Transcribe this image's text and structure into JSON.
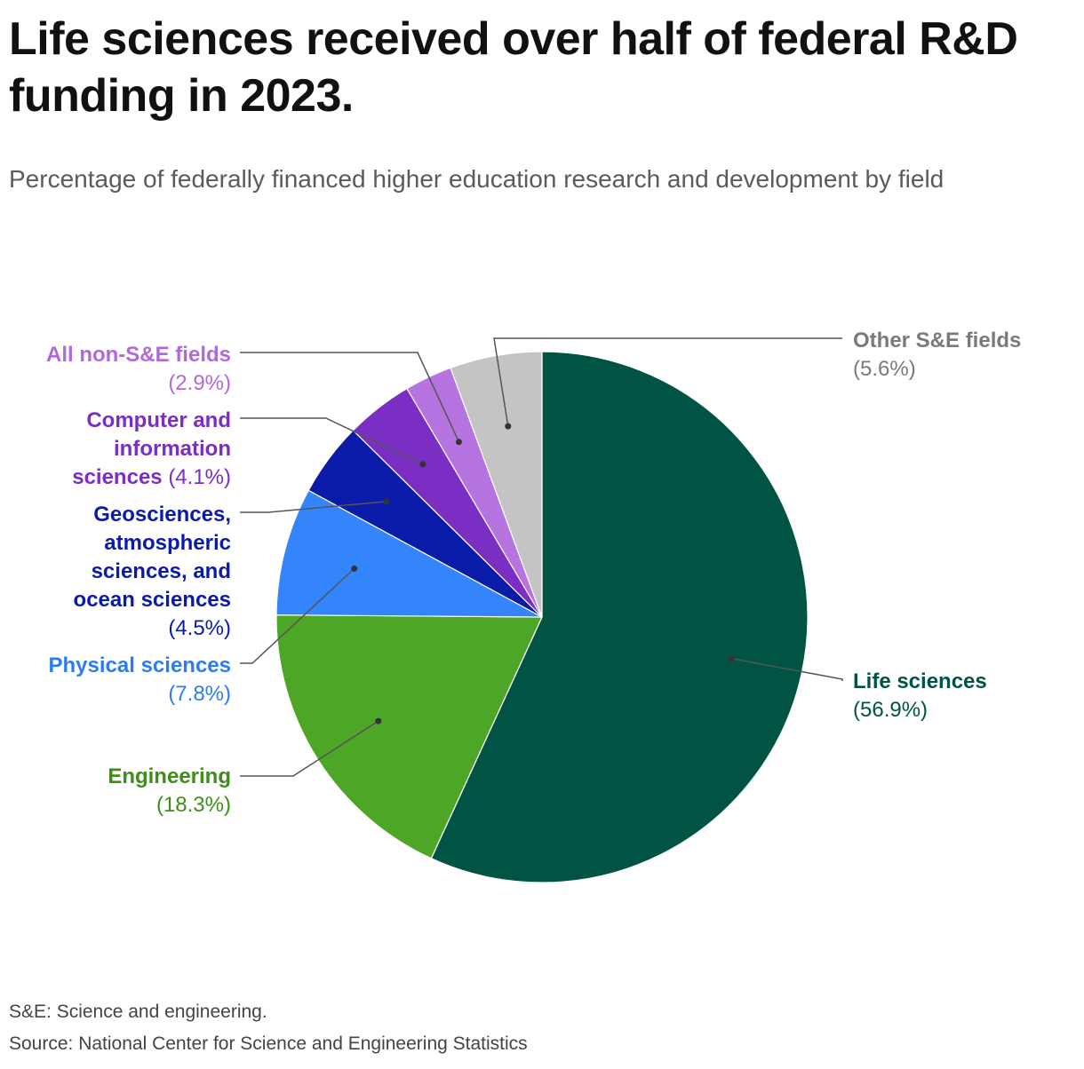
{
  "chart_data": {
    "type": "pie",
    "title": "Life sciences received over half of federal R&D funding in 2023.",
    "subtitle": "Percentage of federally financed higher education research and development by field",
    "slices": [
      {
        "label": "Life sciences",
        "value": 56.9,
        "value_text": "(56.9%)",
        "color": "#015444",
        "label_color": "#015444",
        "label_lines": [
          "Life sciences",
          "(56.9%)"
        ]
      },
      {
        "label": "Engineering",
        "value": 18.3,
        "value_text": "(18.3%)",
        "color": "#4ea626",
        "label_color": "#3d8f17",
        "label_lines": [
          "Engineering",
          "(18.3%)"
        ]
      },
      {
        "label": "Physical sciences",
        "value": 7.8,
        "value_text": "(7.8%)",
        "color": "#3485fc",
        "label_color": "#2d7cf2",
        "label_lines": [
          "Physical sciences",
          "(7.8%)"
        ]
      },
      {
        "label": "Geosciences, atmospheric sciences, and ocean sciences",
        "value": 4.5,
        "value_text": "(4.5%)",
        "color": "#0b1ba9",
        "label_color": "#0b1ba9",
        "label_lines": [
          "Geosciences,",
          "atmospheric",
          "sciences, and",
          "ocean sciences",
          "(4.5%)"
        ]
      },
      {
        "label": "Computer and information sciences",
        "value": 4.1,
        "value_text": "(4.1%)",
        "color": "#7b2ec3",
        "label_color": "#7b2ec3",
        "label_lines": [
          "Computer and",
          "information",
          "sciences (4.1%)"
        ]
      },
      {
        "label": "All non-S&E fields",
        "value": 2.9,
        "value_text": "(2.9%)",
        "color": "#b674e0",
        "label_color": "#b069dc",
        "label_lines": [
          "All non-S&E fields",
          "(2.9%)"
        ]
      },
      {
        "label": "Other S&E fields",
        "value": 5.6,
        "value_text": "(5.6%)",
        "color": "#c4c4c4",
        "label_color": "#7a7a7a",
        "label_lines": [
          "Other S&E fields",
          "(5.6%)"
        ]
      }
    ]
  },
  "footer": {
    "note": "S&E: Science and engineering.",
    "source": "Source: National Center for Science and Engineering Statistics"
  }
}
